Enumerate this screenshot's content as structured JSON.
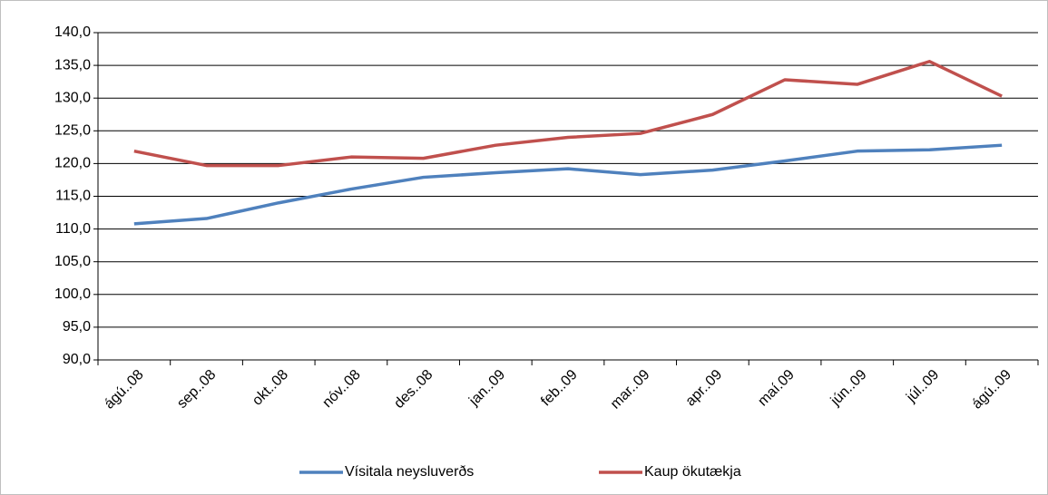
{
  "chart_data": {
    "type": "line",
    "categories": [
      "ágú..08",
      "sep..08",
      "okt..08",
      "nóv..08",
      "des..08",
      "jan..09",
      "feb..09",
      "mar..09",
      "apr..09",
      "maí.09",
      "jún..09",
      "júl..09",
      "ágú..09"
    ],
    "series": [
      {
        "name": "Vísitala neysluverðs",
        "color": "#4f81bd",
        "values": [
          110.8,
          111.6,
          114.0,
          116.1,
          117.9,
          118.6,
          119.2,
          118.3,
          119.0,
          120.4,
          121.9,
          122.1,
          122.8
        ]
      },
      {
        "name": "Kaup ökutækja",
        "color": "#c0504d",
        "values": [
          121.9,
          119.7,
          119.7,
          121.0,
          120.8,
          122.8,
          124.0,
          124.6,
          127.5,
          132.8,
          132.1,
          135.6,
          130.3
        ]
      }
    ],
    "ylim": [
      90,
      140
    ],
    "yticks": [
      {
        "value": 90,
        "label": "90,0"
      },
      {
        "value": 95,
        "label": "95,0"
      },
      {
        "value": 100,
        "label": "100,0"
      },
      {
        "value": 105,
        "label": "105,0"
      },
      {
        "value": 110,
        "label": "110,0"
      },
      {
        "value": 115,
        "label": "115,0"
      },
      {
        "value": 120,
        "label": "120,0"
      },
      {
        "value": 125,
        "label": "125,0"
      },
      {
        "value": 130,
        "label": "130,0"
      },
      {
        "value": 135,
        "label": "135,0"
      },
      {
        "value": 140,
        "label": "140,0"
      }
    ],
    "grid": true,
    "legend": "bottom"
  }
}
